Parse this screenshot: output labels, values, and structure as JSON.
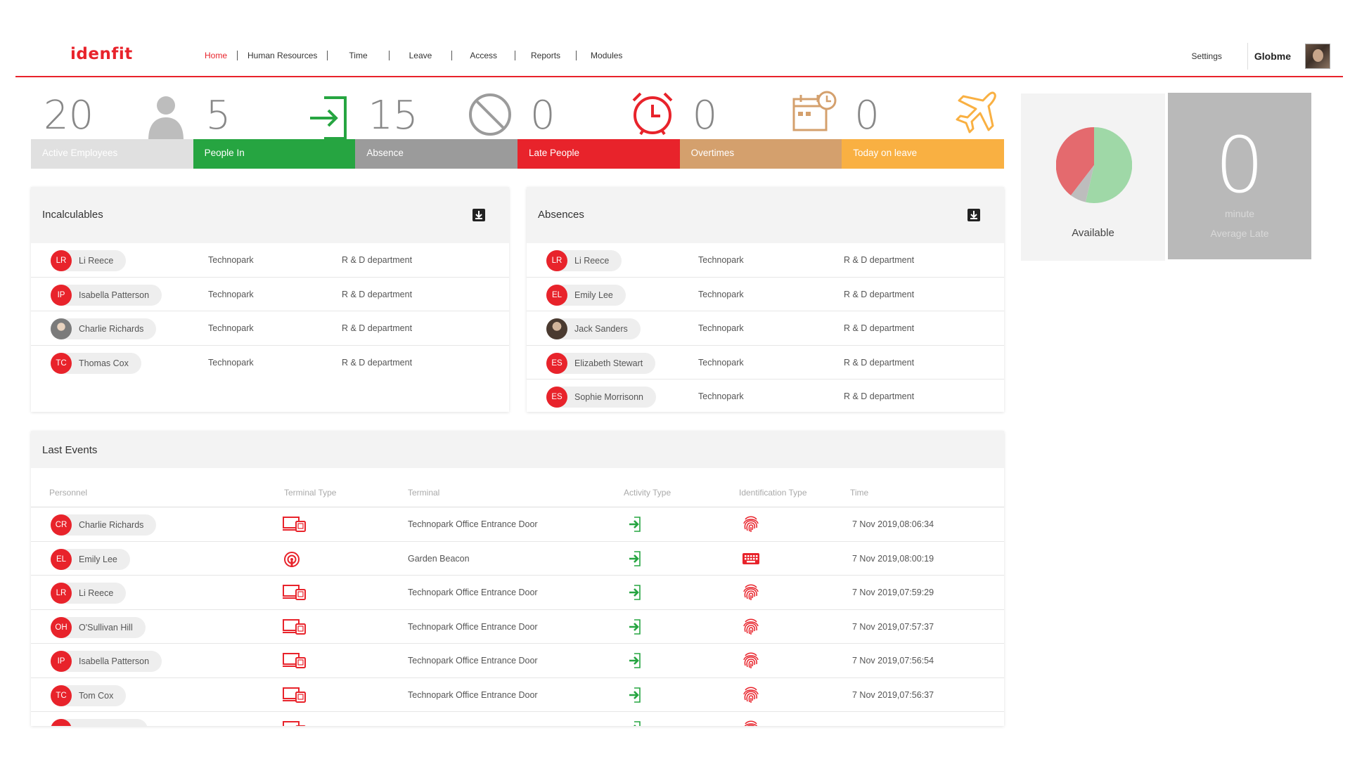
{
  "brand": "idenfit",
  "nav": {
    "items": [
      "Home",
      "Human Resources",
      "Time",
      "Leave",
      "Access",
      "Reports",
      "Modules"
    ],
    "active": "Home",
    "settings": "Settings",
    "user": "Globme"
  },
  "stats": [
    {
      "value": "20",
      "label": "Active Employees",
      "color": "#e0e0e0",
      "icon": "person-icon"
    },
    {
      "value": "5",
      "label": "People In",
      "color": "#26a541",
      "icon": "sign-in-icon"
    },
    {
      "value": "15",
      "label": "Absence",
      "color": "#9b9b9b",
      "icon": "ban-icon"
    },
    {
      "value": "0",
      "label": "Late People",
      "color": "#e8232b",
      "icon": "alarm-clock-icon"
    },
    {
      "value": "0",
      "label": "Overtimes",
      "color": "#d4a06d",
      "icon": "calendar-clock-icon"
    },
    {
      "value": "0",
      "label": "Today on leave",
      "color": "#f9b042",
      "icon": "airplane-icon"
    }
  ],
  "availability": {
    "label": "Available",
    "pie_colors": [
      "#9fd8a7",
      "#e46a6e",
      "#bdbdbd"
    ]
  },
  "late": {
    "value": "0",
    "unit": "minute",
    "label": "Average Late"
  },
  "incalculables": {
    "title": "Incalculables",
    "rows": [
      {
        "initials": "LR",
        "name": "Li Reece",
        "site": "Technopark",
        "dept": "R & D department",
        "photo": false
      },
      {
        "initials": "IP",
        "name": "Isabella Patterson",
        "site": "Technopark",
        "dept": "R & D department",
        "photo": false
      },
      {
        "initials": "",
        "name": "Charlie Richards",
        "site": "Technopark",
        "dept": "R & D department",
        "photo": true
      },
      {
        "initials": "TC",
        "name": "Thomas Cox",
        "site": "Technopark",
        "dept": "R & D department",
        "photo": false
      }
    ]
  },
  "absences": {
    "title": "Absences",
    "rows": [
      {
        "initials": "LR",
        "name": "Li Reece",
        "site": "Technopark",
        "dept": "R & D department",
        "photo": false
      },
      {
        "initials": "EL",
        "name": "Emily Lee",
        "site": "Technopark",
        "dept": "R & D department",
        "photo": false
      },
      {
        "initials": "",
        "name": "Jack Sanders",
        "site": "Technopark",
        "dept": "R & D department",
        "photo": true
      },
      {
        "initials": "ES",
        "name": "Elizabeth Stewart",
        "site": "Technopark",
        "dept": "R & D department",
        "photo": false
      },
      {
        "initials": "ES",
        "name": "Sophie Morrisonn",
        "site": "Technopark",
        "dept": "R & D department",
        "photo": false
      }
    ]
  },
  "events": {
    "title": "Last Events",
    "columns": [
      "Personnel",
      "Terminal Type",
      "Terminal",
      "Activity Type",
      "Identification Type",
      "Time"
    ],
    "rows": [
      {
        "initials": "CR",
        "name": "Charlie Richards",
        "terminal_type": "devices-icon",
        "terminal": "Technopark Office Entrance Door",
        "activity": "sign-in-icon",
        "id_type": "fingerprint-icon",
        "time": "7 Nov 2019,08:06:34"
      },
      {
        "initials": "EL",
        "name": "Emily Lee",
        "terminal_type": "beacon-icon",
        "terminal": "Garden Beacon",
        "activity": "sign-in-icon",
        "id_type": "keyboard-icon",
        "time": "7 Nov 2019,08:00:19"
      },
      {
        "initials": "LR",
        "name": "Li Reece",
        "terminal_type": "devices-icon",
        "terminal": "Technopark Office Entrance Door",
        "activity": "sign-in-icon",
        "id_type": "fingerprint-icon",
        "time": "7 Nov 2019,07:59:29"
      },
      {
        "initials": "OH",
        "name": "O'Sullivan Hill",
        "terminal_type": "devices-icon",
        "terminal": "Technopark Office Entrance Door",
        "activity": "sign-in-icon",
        "id_type": "fingerprint-icon",
        "time": "7 Nov 2019,07:57:37"
      },
      {
        "initials": "IP",
        "name": "Isabella Patterson",
        "terminal_type": "devices-icon",
        "terminal": "Technopark Office Entrance Door",
        "activity": "sign-in-icon",
        "id_type": "fingerprint-icon",
        "time": "7 Nov 2019,07:56:54"
      },
      {
        "initials": "TC",
        "name": "Tom Cox",
        "terminal_type": "devices-icon",
        "terminal": "Technopark Office Entrance Door",
        "activity": "sign-in-icon",
        "id_type": "fingerprint-icon",
        "time": "7 Nov 2019,07:56:37"
      }
    ]
  }
}
